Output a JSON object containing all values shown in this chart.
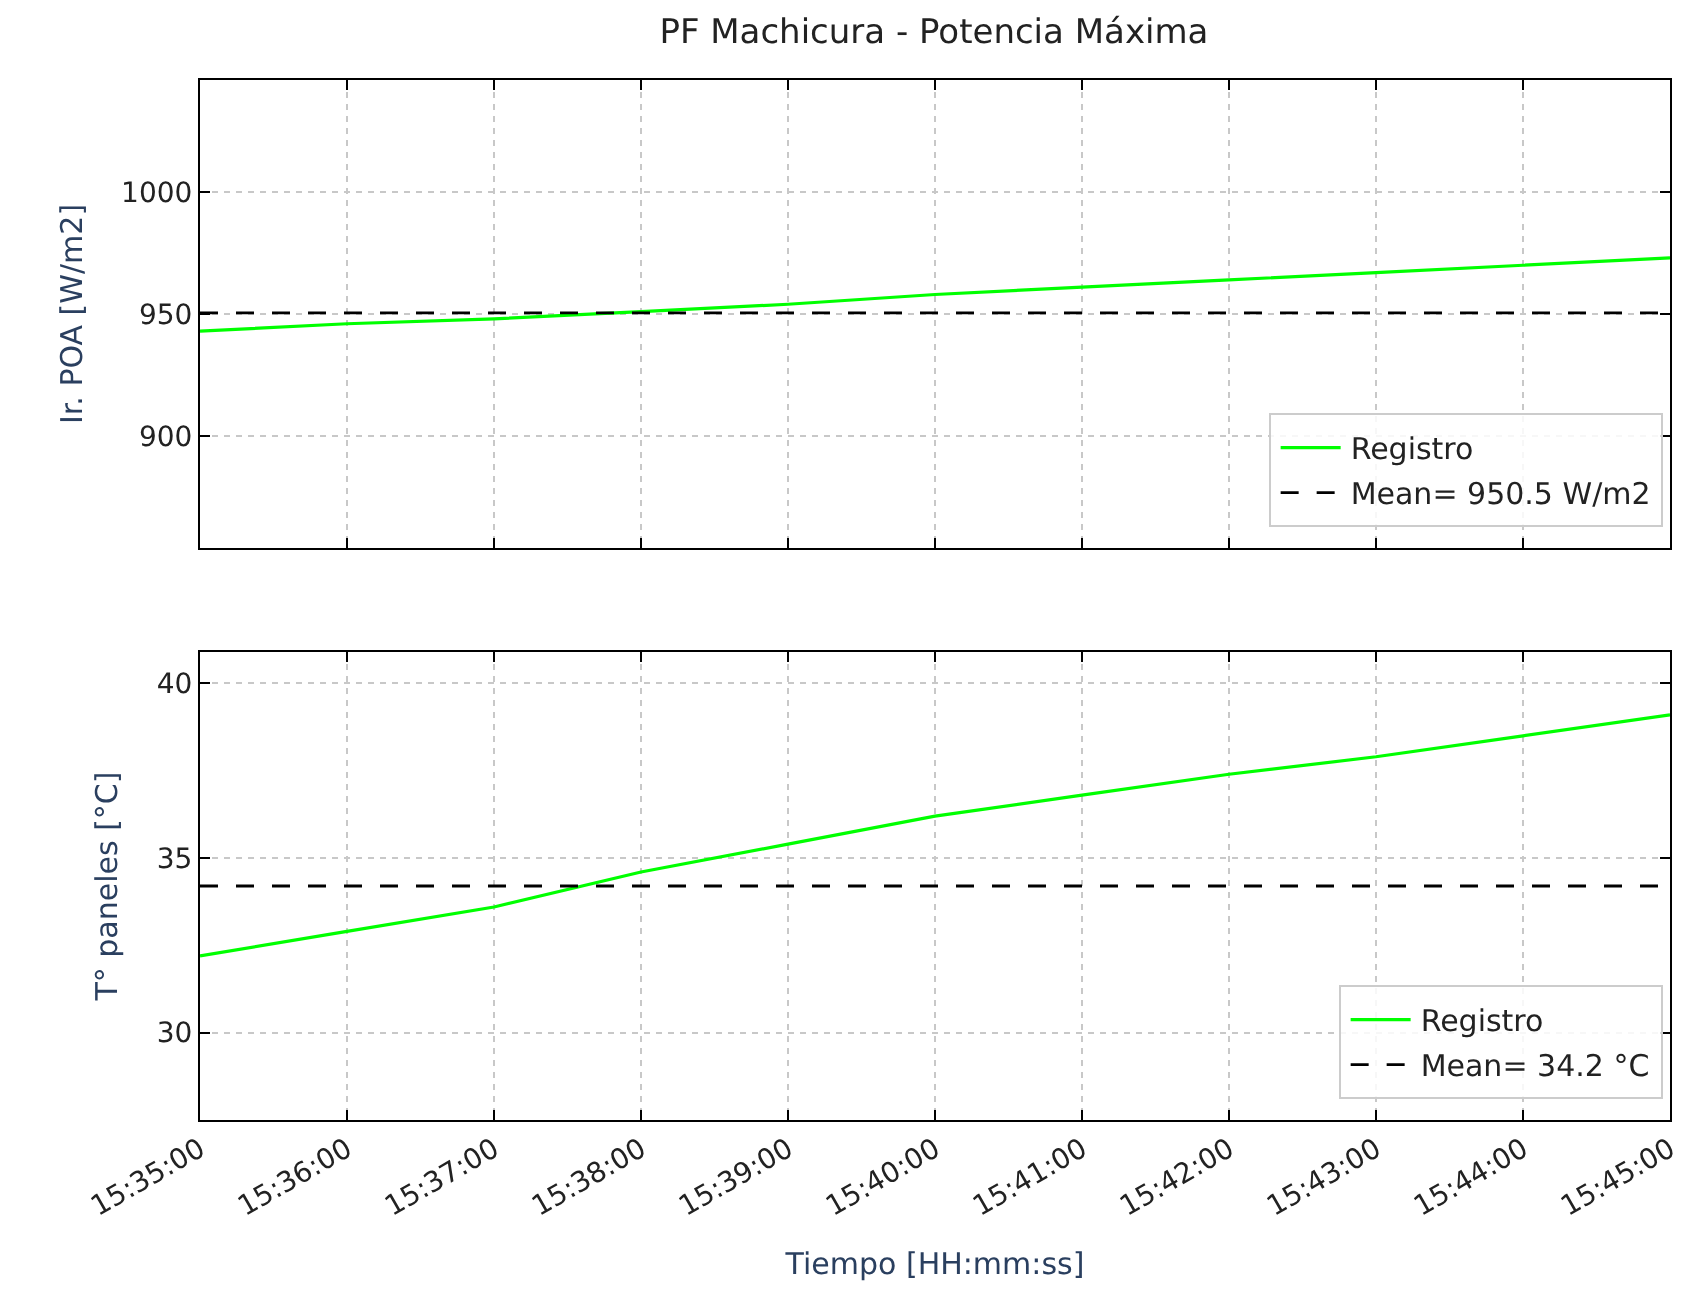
{
  "chart_data": [
    {
      "type": "line",
      "title": "PF Machicura - Potencia Máxima",
      "ylabel": "Ir. POA [W/m2]",
      "x": [
        15.583333,
        15.6,
        15.616667,
        15.633333,
        15.65,
        15.666667,
        15.683333,
        15.7,
        15.716667,
        15.733333,
        15.75
      ],
      "series": [
        {
          "name": "Registro",
          "color": "#00ff00",
          "values": [
            943,
            946,
            948,
            951,
            954,
            958,
            961,
            964,
            967,
            970,
            973
          ]
        }
      ],
      "ref_lines": [
        {
          "axis": "y",
          "value": 950.5,
          "label": "Mean= 950.5 W/m2",
          "color": "#000000",
          "line_style": "dashed"
        }
      ],
      "xlim": [
        15.583333,
        15.75
      ],
      "xticks": [
        {
          "value": 15.583333,
          "label": null
        },
        {
          "value": 15.6,
          "label": null
        },
        {
          "value": 15.616667,
          "label": null
        },
        {
          "value": 15.633333,
          "label": null
        },
        {
          "value": 15.65,
          "label": null
        },
        {
          "value": 15.666667,
          "label": null
        },
        {
          "value": 15.683333,
          "label": null
        },
        {
          "value": 15.7,
          "label": null
        },
        {
          "value": 15.716667,
          "label": null
        },
        {
          "value": 15.733333,
          "label": null
        },
        {
          "value": 15.75,
          "label": null
        }
      ],
      "ylim": [
        854,
        1046
      ],
      "yticks": [
        900,
        950,
        1000
      ],
      "grid": true,
      "legend": "bottom right",
      "tick_labels": "y",
      "line_style": "solid"
    },
    {
      "type": "line",
      "ylabel": "T° paneles [°C]",
      "xlabel": "Tiempo [HH:mm:ss]",
      "x": [
        15.583333,
        15.6,
        15.616667,
        15.633333,
        15.65,
        15.666667,
        15.683333,
        15.7,
        15.716667,
        15.733333,
        15.75
      ],
      "series": [
        {
          "name": "Registro",
          "color": "#00ff00",
          "values": [
            32.2,
            32.9,
            33.6,
            34.6,
            35.4,
            36.2,
            36.8,
            37.4,
            37.9,
            38.5,
            39.1
          ]
        }
      ],
      "ref_lines": [
        {
          "axis": "y",
          "value": 34.2,
          "label": "Mean= 34.2 °C",
          "color": "#000000",
          "line_style": "dashed"
        }
      ],
      "xlim": [
        15.583333,
        15.75
      ],
      "xticks": [
        {
          "value": 15.583333,
          "label": "15:35:00"
        },
        {
          "value": 15.6,
          "label": "15:36:00"
        },
        {
          "value": 15.616667,
          "label": "15:37:00"
        },
        {
          "value": 15.633333,
          "label": "15:38:00"
        },
        {
          "value": 15.65,
          "label": "15:39:00"
        },
        {
          "value": 15.666667,
          "label": "15:40:00"
        },
        {
          "value": 15.683333,
          "label": "15:41:00"
        },
        {
          "value": 15.7,
          "label": "15:42:00"
        },
        {
          "value": 15.716667,
          "label": "15:43:00"
        },
        {
          "value": 15.733333,
          "label": "15:44:00"
        },
        {
          "value": 15.75,
          "label": "15:45:00"
        }
      ],
      "ylim": [
        27.5,
        40.9
      ],
      "yticks": [
        30,
        35,
        40
      ],
      "grid": true,
      "legend": "bottom right",
      "line_style": "solid"
    }
  ]
}
